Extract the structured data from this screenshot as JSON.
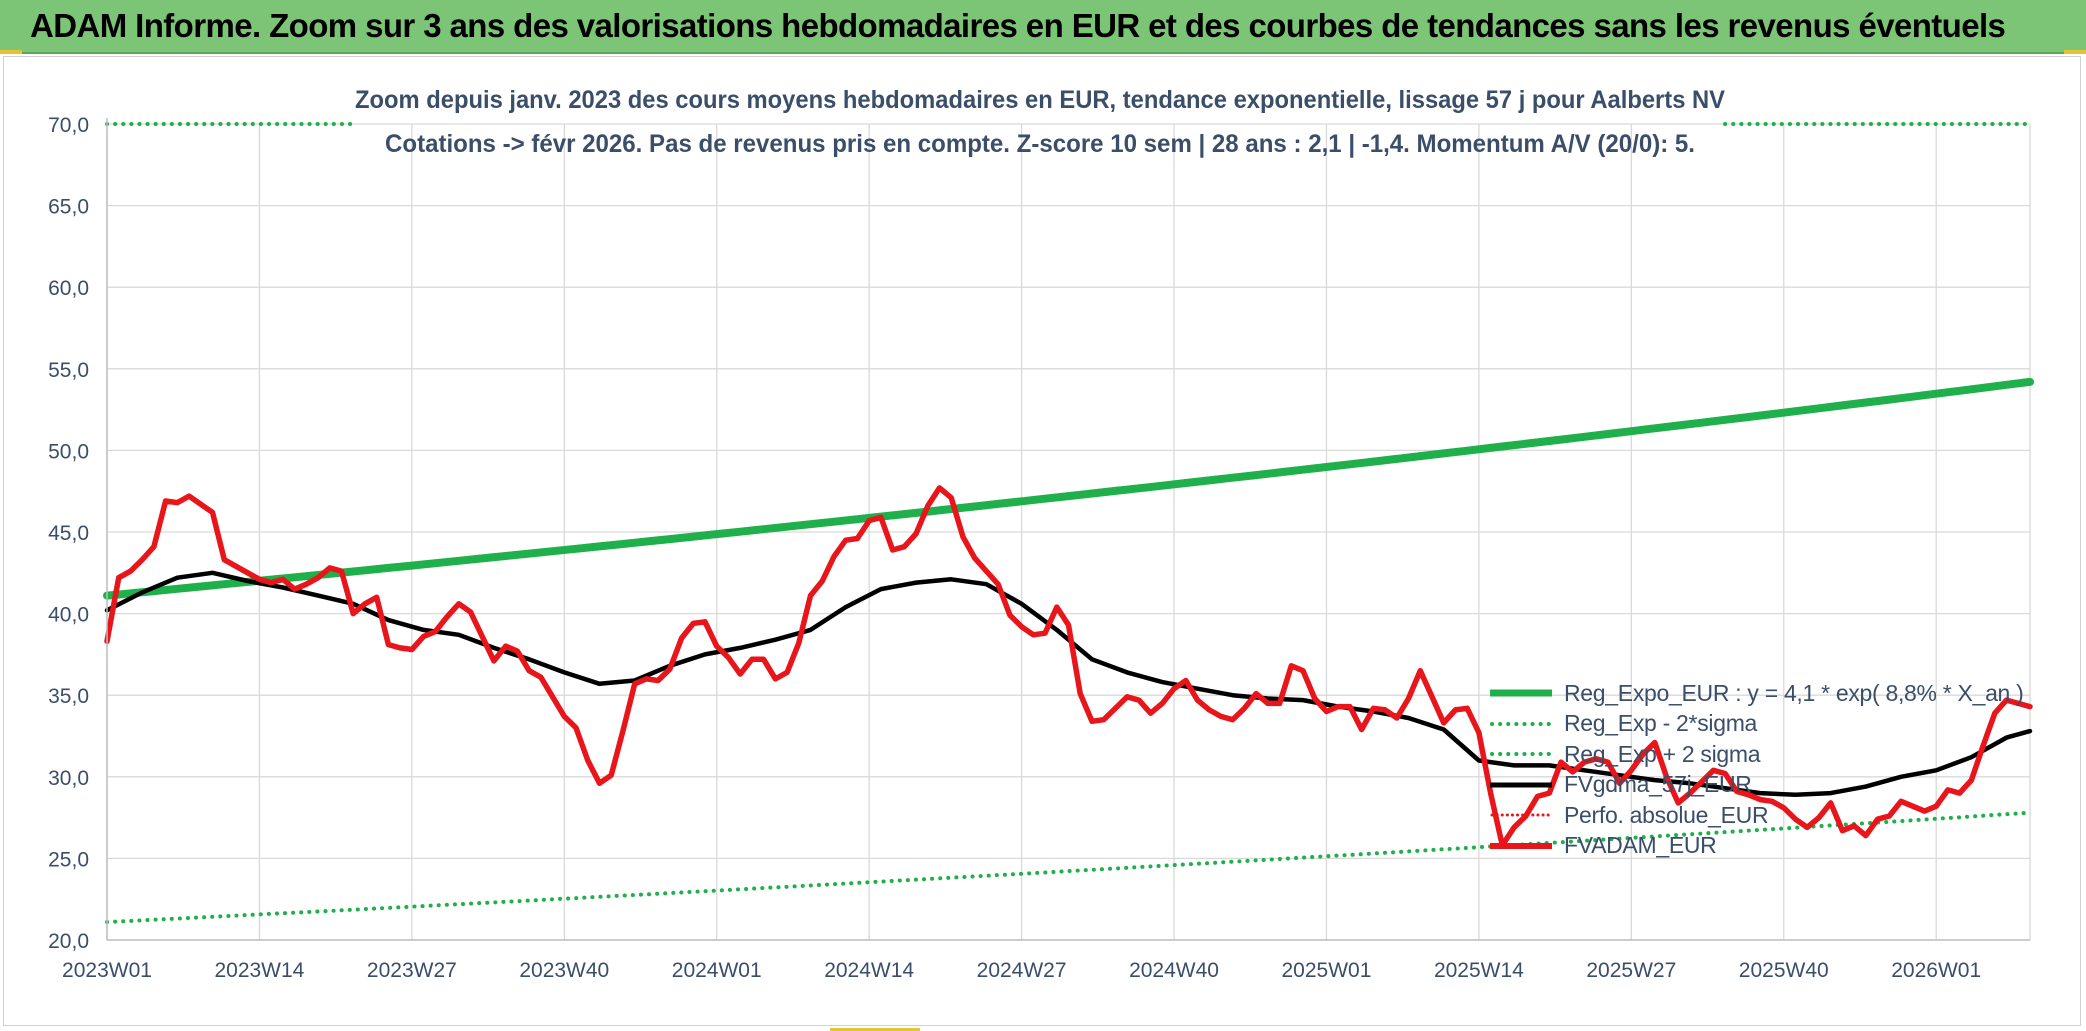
{
  "banner": {
    "title": "ADAM Informe. Zoom sur 3 ans des valorisations hebdomadaires en EUR et des courbes de tendances sans les revenus éventuels"
  },
  "chart_data": {
    "type": "line",
    "title_line1": "Zoom depuis janv. 2023 des cours moyens hebdomadaires en EUR, tendance exponentielle, lissage 57 j pour Aalberts NV",
    "title_line2": "Cotations -> févr 2026. Pas de revenus pris en compte. Z-score 10 sem | 28 ans : 2,1 | -1,4. Momentum A/V (20/0): 5.",
    "x_tick_labels": [
      "2023W01",
      "2023W14",
      "2023W27",
      "2023W40",
      "2024W01",
      "2024W14",
      "2024W27",
      "2024W40",
      "2025W01",
      "2025W14",
      "2025W27",
      "2025W40",
      "2026W01"
    ],
    "x_tick_week_index": [
      0,
      13,
      26,
      39,
      52,
      65,
      78,
      91,
      104,
      117,
      130,
      143,
      156
    ],
    "x_range": [
      0,
      164
    ],
    "y_tick_labels": [
      "20,0",
      "25,0",
      "30,0",
      "35,0",
      "40,0",
      "45,0",
      "50,0",
      "55,0",
      "60,0",
      "65,0",
      "70,0"
    ],
    "ylim": [
      20,
      70
    ],
    "grid": true,
    "legend_position": "right",
    "colors": {
      "reg_expo": "#1fb04b",
      "reg_sigma": "#1fb04b",
      "gdma": "#000000",
      "perfo": "#e8151b",
      "fvadam": "#e8151b",
      "text": "#3a4e6a",
      "grid": "#d9d9d9"
    },
    "series": [
      {
        "name": "Reg_Expo_EUR : y = 4,1 * exp( 8,8% *  X_an )",
        "key": "reg_expo",
        "x": [
          0,
          164
        ],
        "y": [
          41.1,
          54.2
        ]
      },
      {
        "name": "Reg_Exp - 2*sigma",
        "key": "reg_minus",
        "x": [
          0,
          164
        ],
        "y": [
          21.1,
          27.8
        ]
      },
      {
        "name": "Reg_Exp + 2 sigma",
        "key": "reg_plus",
        "x": [
          0,
          164
        ],
        "y": [
          70.0,
          70.0
        ],
        "segments": [
          [
            0,
            21
          ],
          [
            138,
            164
          ]
        ]
      },
      {
        "name": "FVgdma_57j_EUR",
        "key": "gdma",
        "x": [
          0,
          3,
          6,
          9,
          12,
          15,
          18,
          21,
          24,
          27,
          30,
          33,
          36,
          39,
          42,
          45,
          48,
          51,
          54,
          57,
          60,
          63,
          66,
          69,
          72,
          75,
          78,
          81,
          84,
          87,
          90,
          93,
          96,
          99,
          102,
          105,
          108,
          111,
          114,
          117,
          120,
          123,
          126,
          129,
          132,
          135,
          138,
          141,
          144,
          147,
          150,
          153,
          156,
          159,
          162,
          164
        ],
        "y": [
          40.2,
          41.3,
          42.2,
          42.5,
          42.0,
          41.6,
          41.1,
          40.6,
          39.6,
          39.0,
          38.7,
          37.9,
          37.2,
          36.4,
          35.7,
          35.9,
          36.8,
          37.5,
          37.9,
          38.4,
          39.0,
          40.4,
          41.5,
          41.9,
          42.1,
          41.8,
          40.6,
          39.0,
          37.2,
          36.4,
          35.8,
          35.4,
          35.0,
          34.8,
          34.7,
          34.3,
          34.0,
          33.6,
          32.9,
          31.0,
          30.7,
          30.7,
          30.4,
          30.1,
          29.8,
          29.6,
          29.3,
          29.0,
          28.9,
          29.0,
          29.4,
          30.0,
          30.4,
          31.2,
          32.4,
          32.8
        ]
      },
      {
        "name": "Perfo. absolue_EUR",
        "key": "perfo",
        "x": [],
        "y": []
      },
      {
        "name": "FVADAM_EUR",
        "key": "fvadam",
        "x": [
          0,
          1,
          2,
          3,
          4,
          5,
          6,
          7,
          8,
          9,
          10,
          11,
          12,
          13,
          14,
          15,
          16,
          17,
          18,
          19,
          20,
          21,
          22,
          23,
          24,
          25,
          26,
          27,
          28,
          29,
          30,
          31,
          32,
          33,
          34,
          35,
          36,
          37,
          38,
          39,
          40,
          41,
          42,
          43,
          44,
          45,
          46,
          47,
          48,
          49,
          50,
          51,
          52,
          53,
          54,
          55,
          56,
          57,
          58,
          59,
          60,
          61,
          62,
          63,
          64,
          65,
          66,
          67,
          68,
          69,
          70,
          71,
          72,
          73,
          74,
          75,
          76,
          77,
          78,
          79,
          80,
          81,
          82,
          83,
          84,
          85,
          86,
          87,
          88,
          89,
          90,
          91,
          92,
          93,
          94,
          95,
          96,
          97,
          98,
          99,
          100,
          101,
          102,
          103,
          104,
          105,
          106,
          107,
          108,
          109,
          110,
          111,
          112,
          113,
          114,
          115,
          116,
          117,
          118,
          119,
          120,
          121,
          122,
          123,
          124,
          125,
          126,
          127,
          128,
          129,
          130,
          131,
          132,
          133,
          134,
          135,
          136,
          137,
          138,
          139,
          140,
          141,
          142,
          143,
          144,
          145,
          146,
          147,
          148,
          149,
          150,
          151,
          152,
          153,
          154,
          155,
          156,
          157,
          158,
          159,
          160,
          161,
          162,
          163,
          164
        ],
        "y": [
          38.3,
          42.2,
          42.6,
          43.3,
          44.1,
          46.9,
          46.8,
          47.2,
          46.7,
          46.2,
          43.3,
          42.9,
          42.5,
          42.1,
          41.9,
          42.1,
          41.5,
          41.8,
          42.2,
          42.8,
          42.6,
          40.0,
          40.6,
          41.0,
          38.1,
          37.9,
          37.8,
          38.6,
          38.9,
          39.8,
          40.6,
          40.1,
          38.6,
          37.1,
          38.0,
          37.7,
          36.5,
          36.1,
          34.9,
          33.7,
          33.0,
          31.0,
          29.6,
          30.1,
          32.8,
          35.7,
          36.0,
          35.9,
          36.6,
          38.5,
          39.4,
          39.5,
          38.0,
          37.3,
          36.3,
          37.2,
          37.2,
          36.0,
          36.4,
          38.2,
          41.1,
          42.0,
          43.5,
          44.5,
          44.6,
          45.7,
          45.9,
          43.9,
          44.1,
          44.9,
          46.6,
          47.7,
          47.1,
          44.7,
          43.4,
          42.6,
          41.8,
          39.9,
          39.2,
          38.7,
          38.8,
          40.4,
          39.3,
          35.1,
          33.4,
          33.5,
          34.2,
          34.9,
          34.7,
          33.9,
          34.5,
          35.4,
          35.9,
          34.7,
          34.1,
          33.7,
          33.5,
          34.2,
          35.1,
          34.5,
          34.5,
          36.8,
          36.5,
          34.8,
          34.0,
          34.3,
          34.3,
          32.9,
          34.2,
          34.1,
          33.6,
          34.8,
          36.5,
          34.9,
          33.3,
          34.1,
          34.2,
          32.7,
          29.0,
          25.8,
          26.9,
          27.6,
          28.8,
          29.0,
          30.9,
          30.3,
          30.9,
          31.1,
          30.9,
          29.6,
          30.4,
          31.4,
          32.1,
          30.0,
          28.4,
          29.0,
          29.7,
          30.4,
          30.2,
          29.1,
          28.9,
          28.6,
          28.5,
          28.1,
          27.4,
          26.9,
          27.5,
          28.4,
          26.7,
          27.0,
          26.4,
          27.4,
          27.6,
          28.5,
          28.2,
          27.9,
          28.2,
          29.2,
          29.0,
          29.8,
          31.9,
          33.9,
          34.7,
          34.5,
          34.3
        ]
      }
    ]
  }
}
